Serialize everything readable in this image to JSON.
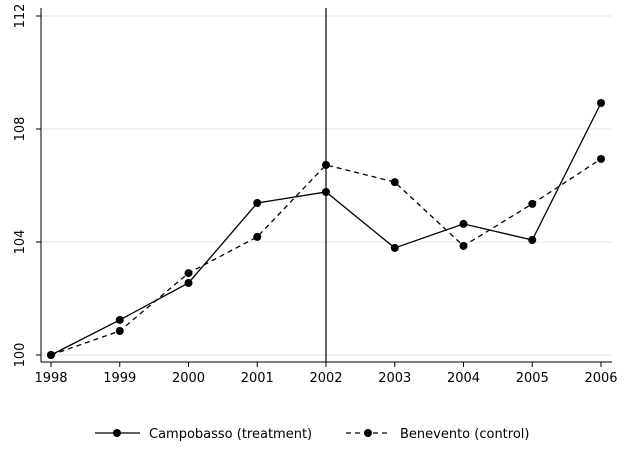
{
  "chart_data": {
    "type": "line",
    "x": [
      1998,
      1999,
      2000,
      2001,
      2002,
      2003,
      2004,
      2005,
      2006
    ],
    "series": [
      {
        "name": "Campobasso (treatment)",
        "color": "#000000",
        "linestyle": "solid",
        "values": [
          100,
          101.24,
          102.55,
          105.38,
          105.77,
          103.79,
          104.64,
          104.07,
          108.92
        ]
      },
      {
        "name": "Benevento (control)",
        "color": "#000000",
        "linestyle": "dashed",
        "values": [
          100,
          100.85,
          102.9,
          104.18,
          106.73,
          106.12,
          103.86,
          105.35,
          106.94
        ]
      }
    ],
    "xlim": [
      1998,
      2006
    ],
    "xticks": [
      1998,
      1999,
      2000,
      2001,
      2002,
      2003,
      2004,
      2005,
      2006
    ],
    "ylim": [
      100,
      112
    ],
    "yticks": [
      100,
      104,
      108,
      112
    ],
    "vline": 2002,
    "grid": true,
    "legend": "bottom"
  }
}
